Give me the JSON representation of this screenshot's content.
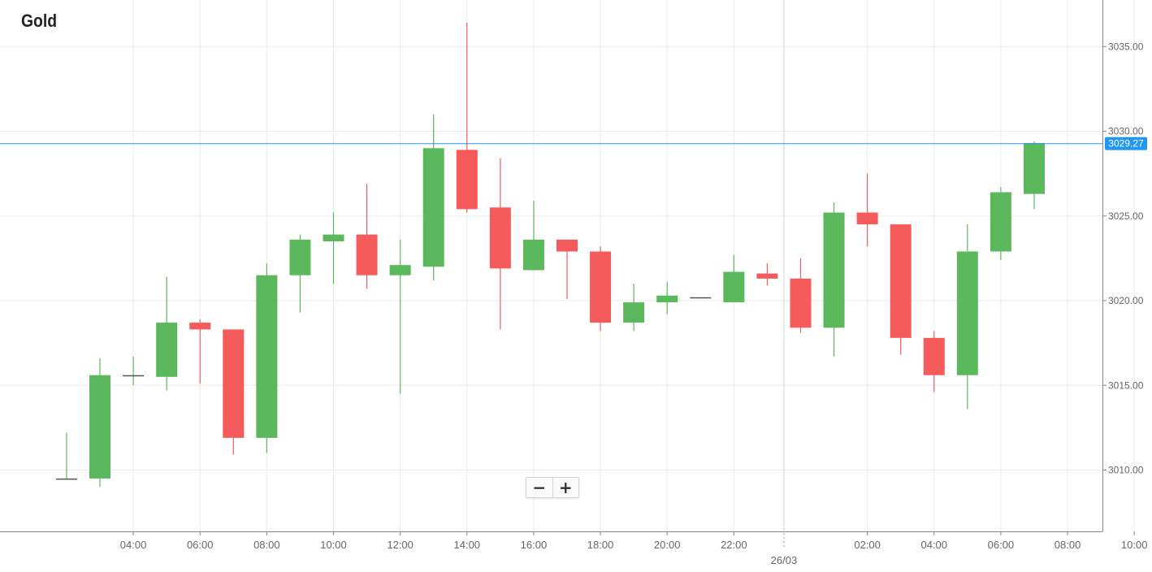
{
  "chart_data": {
    "type": "candlestick",
    "title": "Gold",
    "last_price": "3029.27",
    "colors": {
      "up": "#5cb85c",
      "down": "#f55b5b",
      "last_price_line": "#2196f3",
      "grid": "#ebebeb"
    },
    "ylim": [
      3006.5,
      3037
    ],
    "y_ticks": [
      {
        "value": 3010,
        "label": "3010.00"
      },
      {
        "value": 3015,
        "label": "3015.00"
      },
      {
        "value": 3020,
        "label": "3020.00"
      },
      {
        "value": 3025,
        "label": "3025.00"
      },
      {
        "value": 3030,
        "label": "3030.00"
      },
      {
        "value": 3035,
        "label": "3035.00"
      }
    ],
    "x_ticks": [
      {
        "hour": 4,
        "label": "04:00"
      },
      {
        "hour": 6,
        "label": "06:00"
      },
      {
        "hour": 8,
        "label": "08:00"
      },
      {
        "hour": 10,
        "label": "10:00"
      },
      {
        "hour": 12,
        "label": "12:00"
      },
      {
        "hour": 14,
        "label": "14:00"
      },
      {
        "hour": 16,
        "label": "16:00"
      },
      {
        "hour": 18,
        "label": "18:00"
      },
      {
        "hour": 20,
        "label": "20:00"
      },
      {
        "hour": 22,
        "label": "22:00"
      },
      {
        "hour": 26,
        "label": "02:00"
      },
      {
        "hour": 28,
        "label": "04:00"
      },
      {
        "hour": 30,
        "label": "06:00"
      },
      {
        "hour": 32,
        "label": "08:00"
      },
      {
        "hour": 34,
        "label": "10:00"
      }
    ],
    "day_separator": {
      "hour": 23.5,
      "label": "26/03"
    },
    "candles": [
      {
        "t": 2,
        "open": 3009.5,
        "high": 3012.2,
        "low": 3009.5,
        "close": 3009.5
      },
      {
        "t": 3,
        "open": 3009.5,
        "high": 3016.6,
        "low": 3009.0,
        "close": 3015.6
      },
      {
        "t": 4,
        "open": 3015.6,
        "high": 3016.7,
        "low": 3015.0,
        "close": 3015.6
      },
      {
        "t": 5,
        "open": 3015.5,
        "high": 3021.4,
        "low": 3014.7,
        "close": 3018.7
      },
      {
        "t": 6,
        "open": 3018.7,
        "high": 3018.9,
        "low": 3015.1,
        "close": 3018.3
      },
      {
        "t": 7,
        "open": 3018.3,
        "high": 3018.3,
        "low": 3010.9,
        "close": 3011.9
      },
      {
        "t": 8,
        "open": 3011.9,
        "high": 3022.2,
        "low": 3011.0,
        "close": 3021.5
      },
      {
        "t": 9,
        "open": 3021.5,
        "high": 3023.9,
        "low": 3019.3,
        "close": 3023.6
      },
      {
        "t": 10,
        "open": 3023.5,
        "high": 3025.2,
        "low": 3021.0,
        "close": 3023.9
      },
      {
        "t": 11,
        "open": 3023.9,
        "high": 3026.9,
        "low": 3020.7,
        "close": 3021.5
      },
      {
        "t": 12,
        "open": 3021.5,
        "high": 3023.6,
        "low": 3014.5,
        "close": 3022.1
      },
      {
        "t": 13,
        "open": 3022.0,
        "high": 3031.0,
        "low": 3021.2,
        "close": 3029.0
      },
      {
        "t": 14,
        "open": 3028.9,
        "high": 3036.4,
        "low": 3025.2,
        "close": 3025.4
      },
      {
        "t": 15,
        "open": 3025.5,
        "high": 3028.4,
        "low": 3018.3,
        "close": 3021.9
      },
      {
        "t": 16,
        "open": 3021.8,
        "high": 3025.9,
        "low": 3021.8,
        "close": 3023.6
      },
      {
        "t": 17,
        "open": 3023.6,
        "high": 3023.6,
        "low": 3020.1,
        "close": 3022.9
      },
      {
        "t": 18,
        "open": 3022.9,
        "high": 3023.2,
        "low": 3018.2,
        "close": 3018.7
      },
      {
        "t": 19,
        "open": 3018.7,
        "high": 3021.0,
        "low": 3018.2,
        "close": 3019.9
      },
      {
        "t": 20,
        "open": 3019.9,
        "high": 3021.1,
        "low": 3019.2,
        "close": 3020.3
      },
      {
        "t": 21,
        "open": 3020.2,
        "high": 3020.2,
        "low": 3020.2,
        "close": 3020.2
      },
      {
        "t": 22,
        "open": 3019.9,
        "high": 3022.7,
        "low": 3019.9,
        "close": 3021.7
      },
      {
        "t": 23,
        "open": 3021.6,
        "high": 3022.2,
        "low": 3020.9,
        "close": 3021.3
      },
      {
        "t": 24,
        "open": 3021.3,
        "high": 3022.5,
        "low": 3018.1,
        "close": 3018.4
      },
      {
        "t": 25,
        "open": 3018.4,
        "high": 3025.8,
        "low": 3016.7,
        "close": 3025.2
      },
      {
        "t": 26,
        "open": 3025.2,
        "high": 3027.5,
        "low": 3023.2,
        "close": 3024.5
      },
      {
        "t": 27,
        "open": 3024.5,
        "high": 3024.5,
        "low": 3016.8,
        "close": 3017.8
      },
      {
        "t": 28,
        "open": 3017.8,
        "high": 3018.2,
        "low": 3014.6,
        "close": 3015.6
      },
      {
        "t": 29,
        "open": 3015.6,
        "high": 3024.5,
        "low": 3013.6,
        "close": 3022.9
      },
      {
        "t": 30,
        "open": 3022.9,
        "high": 3026.7,
        "low": 3022.4,
        "close": 3026.4
      },
      {
        "t": 31,
        "open": 3026.3,
        "high": 3029.4,
        "low": 3025.4,
        "close": 3029.3
      }
    ]
  },
  "zoom": {
    "minus_label": "−",
    "plus_label": "+"
  }
}
